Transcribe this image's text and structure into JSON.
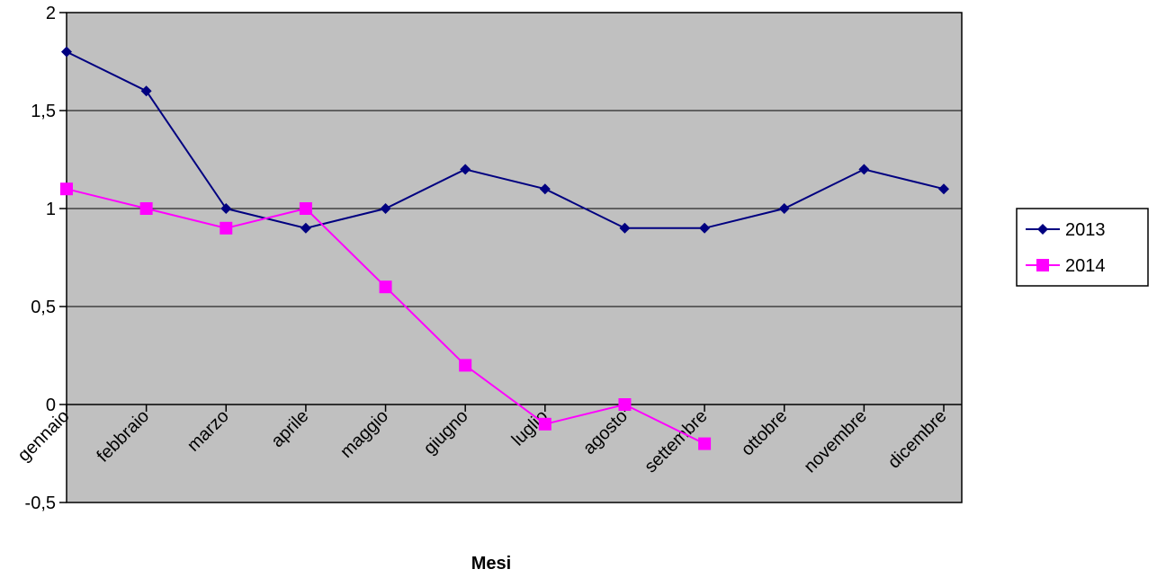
{
  "chart_data": {
    "type": "line",
    "title": "",
    "xlabel": "Mesi",
    "ylabel": "",
    "ylim": [
      -0.5,
      2
    ],
    "yticks": [
      "-0,5",
      "0",
      "0,5",
      "1",
      "1,5",
      "2"
    ],
    "grid": true,
    "legend": "right",
    "categories": [
      "gennaio",
      "febbraio",
      "marzo",
      "aprile",
      "maggio",
      "giugno",
      "luglio",
      "agosto",
      "settembre",
      "ottobre",
      "novembre",
      "dicembre"
    ],
    "series": [
      {
        "name": "2013",
        "color": "#000080",
        "marker": "diamond",
        "values": [
          1.8,
          1.6,
          1.0,
          0.9,
          1.0,
          1.2,
          1.1,
          0.9,
          0.9,
          1.0,
          1.2,
          1.1
        ]
      },
      {
        "name": "2014",
        "color": "#ff00ff",
        "marker": "square",
        "values": [
          1.1,
          1.0,
          0.9,
          1.0,
          0.6,
          0.2,
          -0.1,
          0.0,
          -0.2,
          null,
          null,
          null
        ]
      }
    ],
    "plot_bg": "#c0c0c0"
  }
}
